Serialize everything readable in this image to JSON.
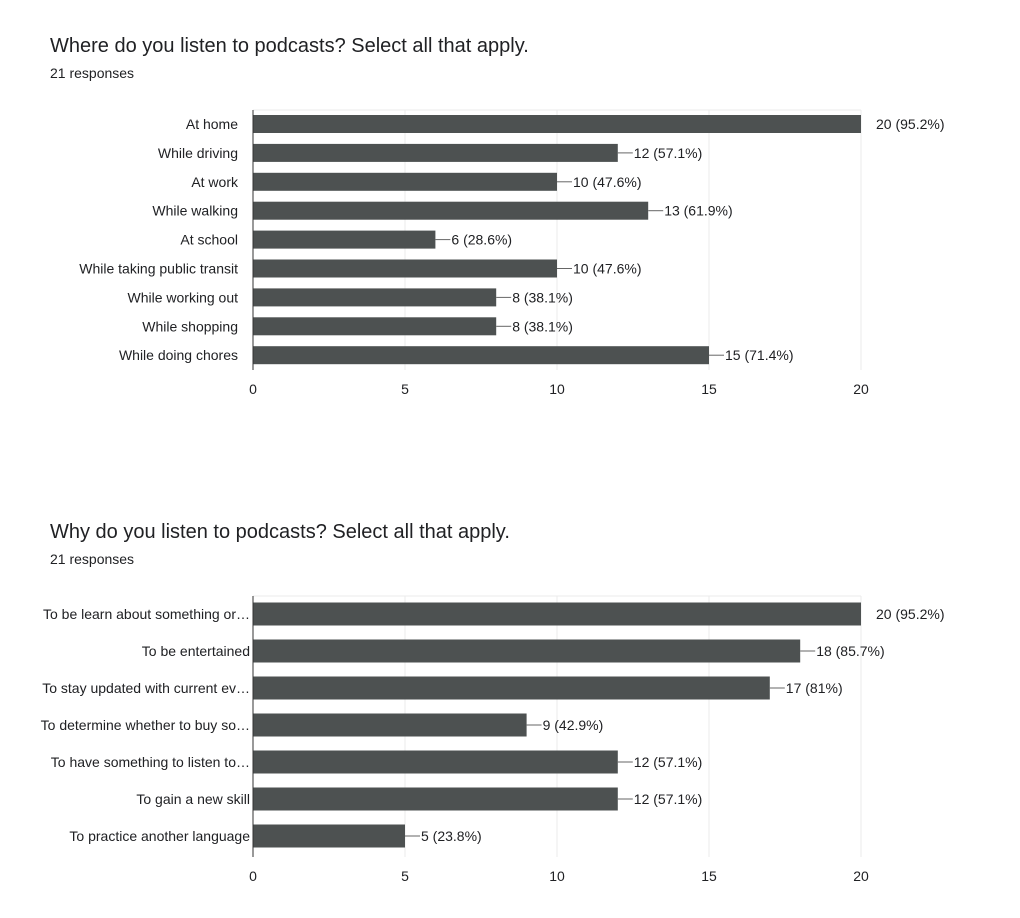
{
  "questions": [
    {
      "title": "Where do you listen to podcasts? Select all that apply.",
      "responses": "21 responses"
    },
    {
      "title": "Why do you listen to podcasts? Select all that apply.",
      "responses": "21 responses"
    }
  ],
  "colors": {
    "bar": "#4d5151",
    "grid": "#ebebeb",
    "axis": "#333333",
    "leader": "#666666",
    "text": "#202124"
  },
  "chart_data": [
    {
      "type": "bar",
      "orientation": "horizontal",
      "title": "",
      "categories": [
        "At home",
        "While driving",
        "At work",
        "While walking",
        "At school",
        "While taking public transit",
        "While working out",
        "While shopping",
        "While doing chores"
      ],
      "values": [
        20,
        12,
        10,
        13,
        6,
        10,
        8,
        8,
        15
      ],
      "value_labels": [
        "20 (95.2%)",
        "12 (57.1%)",
        "10 (47.6%)",
        "13 (61.9%)",
        "6 (28.6%)",
        "10 (47.6%)",
        "8 (38.1%)",
        "8 (38.1%)",
        "15 (71.4%)"
      ],
      "xticks": [
        "0",
        "5",
        "10",
        "15",
        "20"
      ],
      "xlim": [
        0,
        20
      ],
      "grid": true,
      "legend": "none"
    },
    {
      "type": "bar",
      "orientation": "horizontal",
      "title": "",
      "categories": [
        "To be learn about something or…",
        "To be entertained",
        "To stay updated with current ev…",
        "To determine whether to buy so…",
        "To have something to listen to…",
        "To gain a new skill",
        "To practice another language"
      ],
      "values": [
        20,
        18,
        17,
        9,
        12,
        12,
        5
      ],
      "value_labels": [
        "20 (95.2%)",
        "18 (85.7%)",
        "17 (81%)",
        "9 (42.9%)",
        "12 (57.1%)",
        "12 (57.1%)",
        "5 (23.8%)"
      ],
      "xticks": [
        "0",
        "5",
        "10",
        "15",
        "20"
      ],
      "xlim": [
        0,
        20
      ],
      "grid": true,
      "legend": "none"
    }
  ]
}
